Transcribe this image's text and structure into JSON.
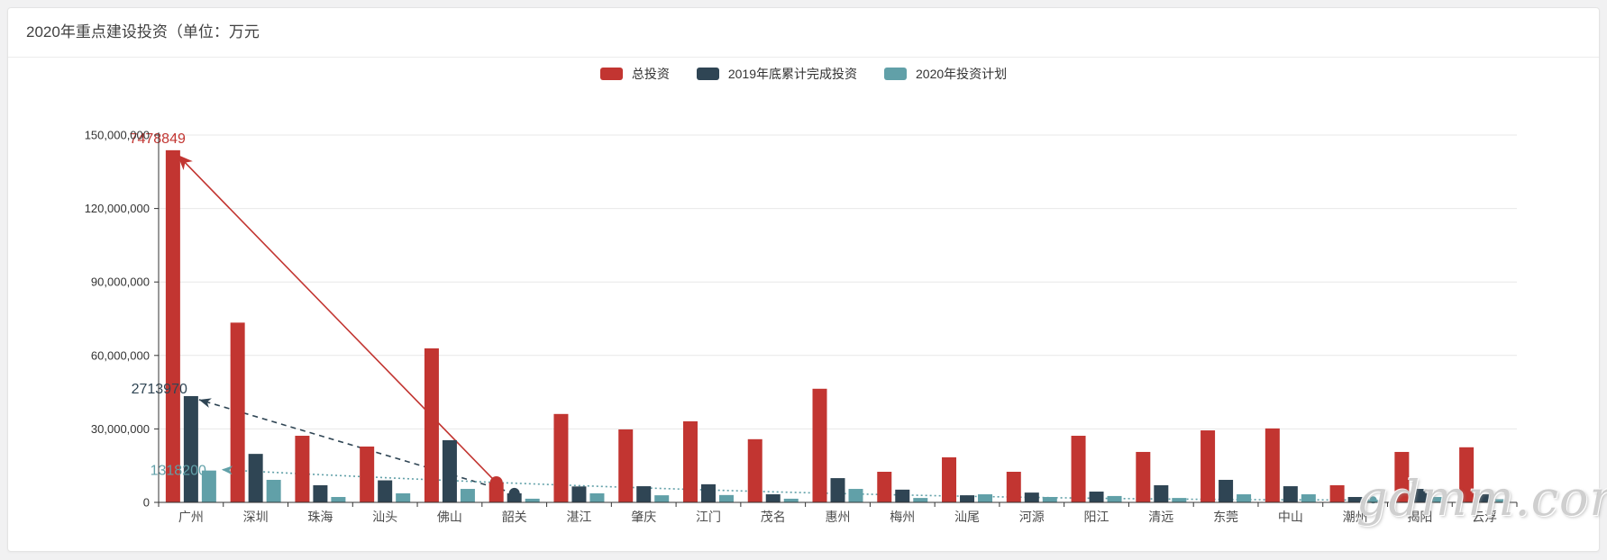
{
  "header": {
    "title": "2020年重点建设投资（单位：万元"
  },
  "legend": {
    "items": [
      {
        "label": "总投资",
        "color": "#c23531"
      },
      {
        "label": "2019年底累计完成投资",
        "color": "#2f4554"
      },
      {
        "label": "2020年投资计划",
        "color": "#61a0a8"
      }
    ]
  },
  "watermark": {
    "text": "gdmm.com"
  },
  "colors": {
    "axis_line": "#333333",
    "grid_line": "#e8e8e8",
    "y_tick_label": "#333333",
    "x_tick_label": "#4d4d4d",
    "card_bg": "#ffffff",
    "page_bg": "#f1f1f2"
  },
  "chart_data": {
    "type": "bar",
    "title": "2020年重点建设投资（单位：万元",
    "categories": [
      "广州",
      "深圳",
      "珠海",
      "汕头",
      "佛山",
      "韶关",
      "湛江",
      "肇庆",
      "江门",
      "茂名",
      "惠州",
      "梅州",
      "汕尾",
      "河源",
      "阳江",
      "清远",
      "东莞",
      "中山",
      "潮州",
      "揭阳",
      "云浮"
    ],
    "series": [
      {
        "name": "总投资",
        "color": "#c23531",
        "values": [
          143800000,
          73400000,
          27200000,
          22800000,
          62900000,
          8100000,
          36100000,
          29800000,
          33100000,
          25800000,
          46400000,
          12500000,
          18400000,
          12500000,
          27200000,
          20600000,
          29400000,
          30200000,
          7000000,
          20600000,
          22500000
        ]
      },
      {
        "name": "2019年底累计完成投资",
        "color": "#2f4554",
        "values": [
          43400000,
          19800000,
          7000000,
          9000000,
          25400000,
          3700000,
          6500000,
          6600000,
          7400000,
          3300000,
          9900000,
          5200000,
          2900000,
          4000000,
          4400000,
          7000000,
          9200000,
          6600000,
          2200000,
          5500000,
          3300000
        ]
      },
      {
        "name": "2020年投资计划",
        "color": "#61a0a8",
        "values": [
          13000000,
          9200000,
          2200000,
          3700000,
          5500000,
          1500000,
          3700000,
          2900000,
          3000000,
          1500000,
          5500000,
          1800000,
          3300000,
          2200000,
          2600000,
          1800000,
          3300000,
          3300000,
          1000000,
          2200000,
          1300000
        ]
      }
    ],
    "ylim": [
      0,
      150000000
    ],
    "ytick_interval": 30000000,
    "ytick_labels": [
      "0",
      "30,000,000",
      "60,000,000",
      "90,000,000",
      "120,000,000",
      "150,000,000"
    ],
    "grid": true,
    "legend_position": "top-center",
    "annotations": [
      {
        "text": "7478849",
        "color": "#c23531",
        "series": "总投资",
        "from_category": "韶关",
        "to_category": "广州",
        "line_style": "solid"
      },
      {
        "text": "2713970",
        "color": "#2f4554",
        "series": "2019年底累计完成投资",
        "from_category": "韶关",
        "to_category": "广州",
        "line_style": "dashed"
      },
      {
        "text": "1318200",
        "color": "#61a0a8",
        "series": "2020年投资计划",
        "from_category": "潮州",
        "to_category": "广州",
        "line_style": "dotted"
      }
    ]
  }
}
